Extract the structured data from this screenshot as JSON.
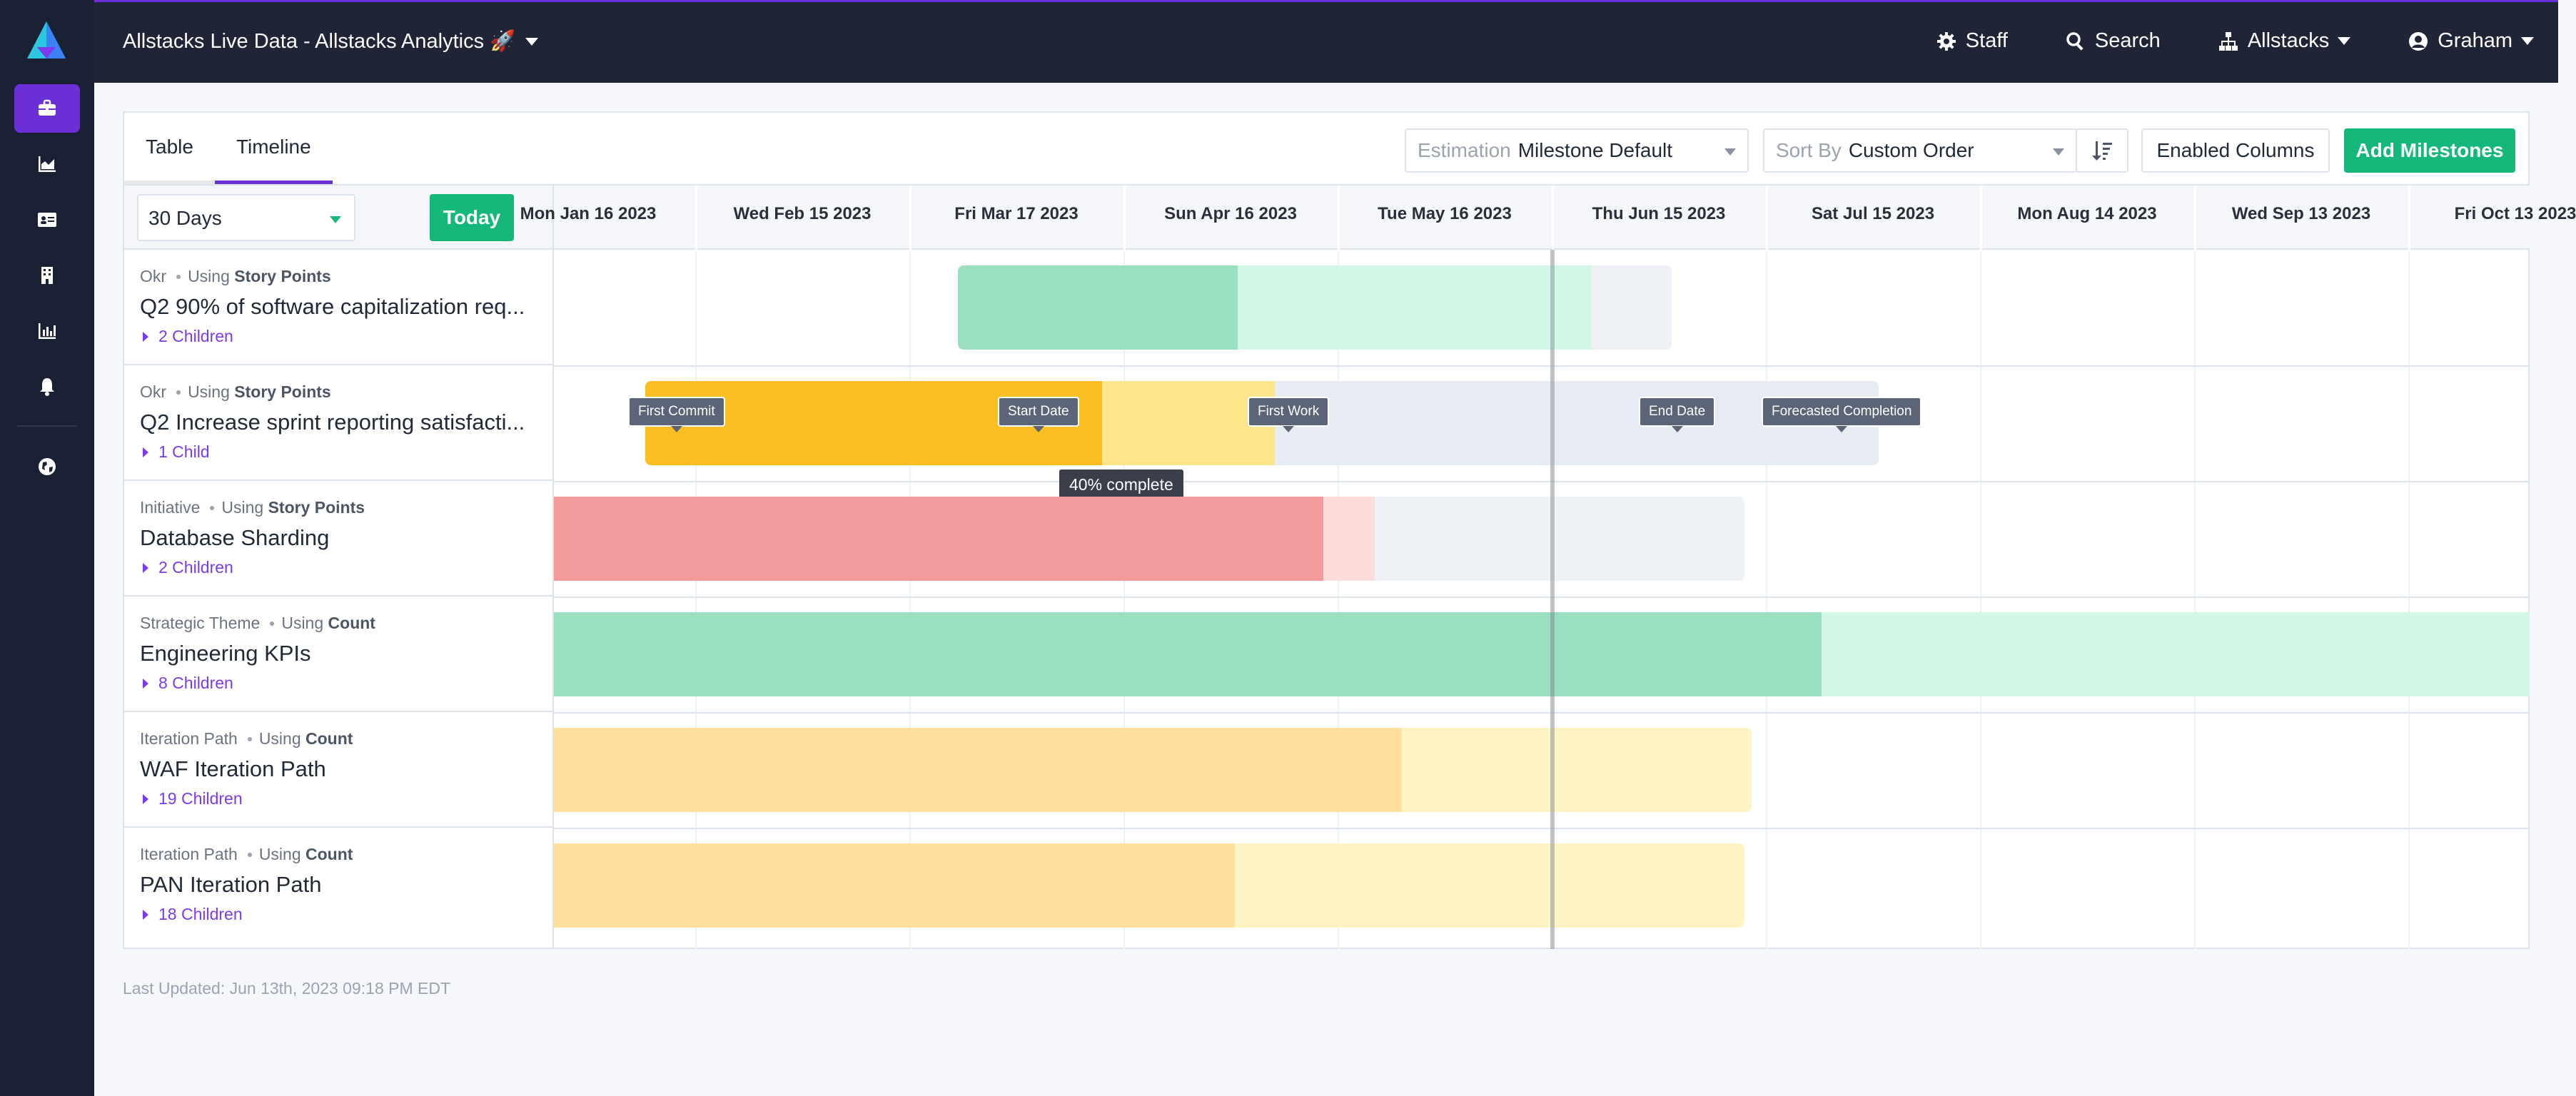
{
  "header": {
    "app_title": "Allstacks Live Data - Allstacks Analytics 🚀",
    "staff": "Staff",
    "search": "Search",
    "org": "Allstacks",
    "user": "Graham"
  },
  "sidebar": {
    "icons": [
      "logo-icon",
      "briefcase-icon",
      "area-chart-icon",
      "id-card-icon",
      "building-icon",
      "bar-chart-icon",
      "bell-icon",
      "globe-icon"
    ]
  },
  "tabs": [
    "Table",
    "Timeline"
  ],
  "controls": {
    "estimation_label": "Estimation",
    "estimation_value": "Milestone Default",
    "sort_label": "Sort By",
    "sort_value": "Custom Order",
    "enabled_columns": "Enabled Columns",
    "add_milestones": "Add Milestones",
    "range": "30 Days",
    "today": "Today"
  },
  "rows": [
    {
      "type": "Okr",
      "using": "Using",
      "unit": "Story Points",
      "name": "Q2 90% of software capitalization req...",
      "children": "2 Children"
    },
    {
      "type": "Okr",
      "using": "Using",
      "unit": "Story Points",
      "name": "Q2 Increase sprint reporting satisfacti...",
      "children": "1 Child"
    },
    {
      "type": "Initiative",
      "using": "Using",
      "unit": "Story Points",
      "name": "Database Sharding",
      "children": "2 Children"
    },
    {
      "type": "Strategic Theme",
      "using": "Using",
      "unit": "Count",
      "name": "Engineering KPIs",
      "children": "8 Children"
    },
    {
      "type": "Iteration Path",
      "using": "Using",
      "unit": "Count",
      "name": "WAF Iteration Path",
      "children": "19 Children"
    },
    {
      "type": "Iteration Path",
      "using": "Using",
      "unit": "Count",
      "name": "PAN Iteration Path",
      "children": "18 Children"
    }
  ],
  "timeline": {
    "dates": [
      "Mon Jan 16 2023",
      "Wed Feb 15 2023",
      "Fri Mar 17 2023",
      "Sun Apr 16 2023",
      "Tue May 16 2023",
      "Thu Jun 15 2023",
      "Sat Jul 15 2023",
      "Mon Aug 14 2023",
      "Wed Sep 13 2023",
      "Fri Oct 13 2023"
    ],
    "flags": {
      "first_commit": "First Commit",
      "start_date": "Start Date",
      "first_work": "First Work",
      "end_date": "End Date",
      "forecasted": "Forecasted Completion"
    },
    "percent_complete": "40% complete",
    "colors": {
      "green_done": "#9adfc0",
      "green_remaining": "#d2f7e6",
      "orange_done": "#fbbf24",
      "orange_remaining": "#fde68a",
      "red_done": "#f19b9b",
      "red_remaining": "#fddcdc",
      "yellow_done": "#fedf9b",
      "yellow_remaining": "#fef3c4",
      "gray": "#e7ecf3"
    }
  },
  "footer": {
    "last_updated": "Last Updated: Jun 13th, 2023 09:18 PM EDT"
  }
}
